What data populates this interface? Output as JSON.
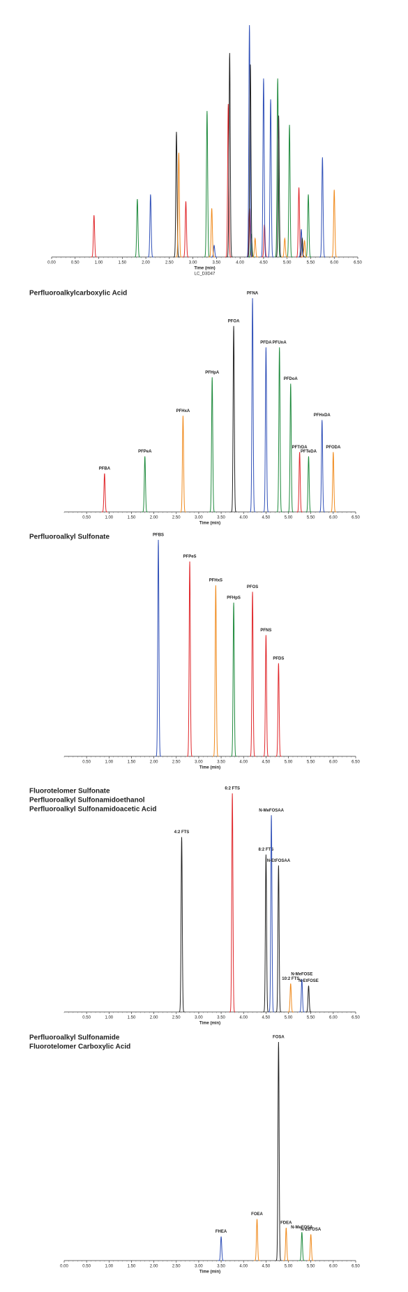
{
  "chart_data": [
    {
      "type": "peaks",
      "xlabel": "Time (min)",
      "annotation": "LC_D3D47",
      "xlim": [
        0,
        6.5
      ],
      "ylim": [
        0,
        100
      ],
      "xticks": [
        {
          "value": 0,
          "label": "0.00"
        },
        {
          "value": 0.5,
          "label": "0.50"
        },
        {
          "value": 1,
          "label": "1.00"
        },
        {
          "value": 1.5,
          "label": "1.50"
        },
        {
          "value": 2,
          "label": "2.00"
        },
        {
          "value": 2.5,
          "label": "2.50"
        },
        {
          "value": 3,
          "label": "3.00"
        },
        {
          "value": 3.5,
          "label": "3.50"
        },
        {
          "value": 4,
          "label": "4.00"
        },
        {
          "value": 4.5,
          "label": "4.50"
        },
        {
          "value": 5,
          "label": "5.00"
        },
        {
          "value": 5.5,
          "label": "5.50"
        },
        {
          "value": 6,
          "label": "6.00"
        },
        {
          "value": 6.5,
          "label": "6.50"
        }
      ],
      "series": [
        {
          "color": "#e0262a",
          "x": [
            0.9,
            2.85,
            3.75,
            4.2,
            4.52,
            5.25
          ],
          "values": [
            18,
            24,
            66,
            21,
            14,
            30
          ]
        },
        {
          "color": "#1e8a3c",
          "x": [
            1.82,
            3.3,
            4.24,
            4.8,
            5.05,
            5.45
          ],
          "values": [
            25,
            63,
            10,
            77,
            57,
            27
          ]
        },
        {
          "color": "#3050b8",
          "x": [
            2.1,
            3.45,
            4.2,
            4.5,
            4.65,
            5.3,
            5.75
          ],
          "values": [
            27,
            5,
            100,
            77,
            68,
            12,
            43
          ]
        },
        {
          "color": "#222222",
          "x": [
            2.65,
            3.78,
            4.22,
            4.82,
            5.32
          ],
          "values": [
            54,
            88,
            83,
            61,
            8
          ]
        },
        {
          "color": "#f08a1c",
          "x": [
            2.7,
            3.4,
            4.32,
            4.95,
            5.37,
            6.0
          ],
          "values": [
            45,
            21,
            8,
            8,
            7,
            29
          ]
        }
      ]
    },
    {
      "type": "labeled-peaks",
      "title": [
        "Perfluoroalkylcarboxylic Acid"
      ],
      "xlabel": "Time (min)",
      "xlim": [
        0,
        6.5
      ],
      "ylim": [
        0,
        100
      ],
      "xticks": [
        {
          "value": 0.5,
          "label": "0.50"
        },
        {
          "value": 1,
          "label": "1.00"
        },
        {
          "value": 1.5,
          "label": "1.50"
        },
        {
          "value": 2,
          "label": "2.00"
        },
        {
          "value": 2.5,
          "label": "2.50"
        },
        {
          "value": 3,
          "label": "3.00"
        },
        {
          "value": 3.5,
          "label": "3.50"
        },
        {
          "value": 4,
          "label": "4.00"
        },
        {
          "value": 4.5,
          "label": "4.50"
        },
        {
          "value": 5,
          "label": "5.00"
        },
        {
          "value": 5.5,
          "label": "5.50"
        },
        {
          "value": 6,
          "label": "6.00"
        },
        {
          "value": 6.5,
          "label": "6.50"
        }
      ],
      "categories": [
        "PFBA",
        "PFPeA",
        "PFHxA",
        "PFHpA",
        "PFOA",
        "PFNA",
        "PFDA",
        "PFUnA",
        "PFDoA",
        "PFTrDA",
        "PFTeDA",
        "PFHxDA",
        "PFODA"
      ],
      "x": [
        0.9,
        1.8,
        2.65,
        3.3,
        3.78,
        4.2,
        4.5,
        4.8,
        5.05,
        5.25,
        5.45,
        5.75,
        6.0
      ],
      "values": [
        18,
        26,
        45,
        63,
        87,
        100,
        77,
        77,
        60,
        28,
        26,
        43,
        28
      ],
      "colors": [
        "#e0262a",
        "#1e8a3c",
        "#f08a1c",
        "#1e8a3c",
        "#222222",
        "#3050b8",
        "#3050b8",
        "#1e8a3c",
        "#1e8a3c",
        "#e0262a",
        "#1e8a3c",
        "#3050b8",
        "#f08a1c"
      ]
    },
    {
      "type": "labeled-peaks",
      "title": [
        "Perfluoroalkyl Sulfonate"
      ],
      "xlabel": "Time (min)",
      "xlim": [
        0,
        6.5
      ],
      "ylim": [
        0,
        100
      ],
      "xticks": [
        {
          "value": 0.5,
          "label": "0.50"
        },
        {
          "value": 1,
          "label": "1.00"
        },
        {
          "value": 1.5,
          "label": "1.50"
        },
        {
          "value": 2,
          "label": "2.00"
        },
        {
          "value": 2.5,
          "label": "2.50"
        },
        {
          "value": 3,
          "label": "3.00"
        },
        {
          "value": 3.5,
          "label": "3.50"
        },
        {
          "value": 4,
          "label": "4.00"
        },
        {
          "value": 4.5,
          "label": "4.50"
        },
        {
          "value": 5,
          "label": "5.00"
        },
        {
          "value": 5.5,
          "label": "5.50"
        },
        {
          "value": 6,
          "label": "6.00"
        },
        {
          "value": 6.5,
          "label": "6.50"
        }
      ],
      "categories": [
        "PFBS",
        "PFPeS",
        "PFHxS",
        "PFHpS",
        "PFOS",
        "PFNS",
        "PFDS"
      ],
      "x": [
        2.1,
        2.8,
        3.38,
        3.78,
        4.2,
        4.5,
        4.78
      ],
      "values": [
        100,
        90,
        79,
        71,
        76,
        56,
        43
      ],
      "colors": [
        "#3050b8",
        "#e0262a",
        "#f08a1c",
        "#1e8a3c",
        "#e0262a",
        "#e0262a",
        "#e0262a"
      ]
    },
    {
      "type": "labeled-peaks",
      "title": [
        "Fluorotelomer Sulfonate",
        "Perfluoroalkyl Sulfonamidoethanol",
        "Perfluoroalkyl Sulfonamidoacetic Acid"
      ],
      "xlabel": "Time (min)",
      "xlim": [
        0,
        6.5
      ],
      "ylim": [
        0,
        100
      ],
      "xticks": [
        {
          "value": 0.5,
          "label": "0.50"
        },
        {
          "value": 1,
          "label": "1.00"
        },
        {
          "value": 1.5,
          "label": "1.50"
        },
        {
          "value": 2,
          "label": "2.00"
        },
        {
          "value": 2.5,
          "label": "2.50"
        },
        {
          "value": 3,
          "label": "3.00"
        },
        {
          "value": 3.5,
          "label": "3.50"
        },
        {
          "value": 4,
          "label": "4.00"
        },
        {
          "value": 4.5,
          "label": "4.50"
        },
        {
          "value": 5,
          "label": "5.00"
        },
        {
          "value": 5.5,
          "label": "5.50"
        },
        {
          "value": 6,
          "label": "6.00"
        },
        {
          "value": 6.5,
          "label": "6.50"
        }
      ],
      "categories": [
        "4:2 FTS",
        "6:2 FTS",
        "8:2 FTS",
        "N-MeFOSAA",
        "N-EtFOSAA",
        "10:2 FTS",
        "N-MeFOSE",
        "N-EtFOSE"
      ],
      "x": [
        2.62,
        3.75,
        4.5,
        4.62,
        4.78,
        5.05,
        5.3,
        5.45
      ],
      "values": [
        80,
        100,
        72,
        90,
        67,
        13,
        15,
        12
      ],
      "colors": [
        "#222222",
        "#e0262a",
        "#222222",
        "#3050b8",
        "#222222",
        "#f08a1c",
        "#3050b8",
        "#222222"
      ]
    },
    {
      "type": "labeled-peaks",
      "title": [
        "Perfluoroalkyl Sulfonamide",
        "Fluorotelomer Carboxylic Acid"
      ],
      "xlabel": "Time (min)",
      "xlim": [
        0,
        6.5
      ],
      "ylim": [
        0,
        100
      ],
      "xticks": [
        {
          "value": 0,
          "label": "0.00"
        },
        {
          "value": 0.5,
          "label": "0.50"
        },
        {
          "value": 1,
          "label": "1.00"
        },
        {
          "value": 1.5,
          "label": "1.50"
        },
        {
          "value": 2,
          "label": "2.00"
        },
        {
          "value": 2.5,
          "label": "2.50"
        },
        {
          "value": 3,
          "label": "3.00"
        },
        {
          "value": 3.5,
          "label": "3.50"
        },
        {
          "value": 4,
          "label": "4.00"
        },
        {
          "value": 4.5,
          "label": "4.50"
        },
        {
          "value": 5,
          "label": "5.00"
        },
        {
          "value": 5.5,
          "label": "5.50"
        },
        {
          "value": 6,
          "label": "6.00"
        },
        {
          "value": 6.5,
          "label": "6.50"
        }
      ],
      "categories": [
        "FHEA",
        "FOEA",
        "FOSA",
        "FDEA",
        "N-MeFOSA",
        "N-EtFOSA"
      ],
      "x": [
        3.5,
        4.3,
        4.78,
        4.95,
        5.3,
        5.5
      ],
      "values": [
        11,
        19,
        100,
        15,
        13,
        12
      ],
      "colors": [
        "#3050b8",
        "#f08a1c",
        "#222222",
        "#f08a1c",
        "#1e8a3c",
        "#f08a1c"
      ]
    }
  ]
}
